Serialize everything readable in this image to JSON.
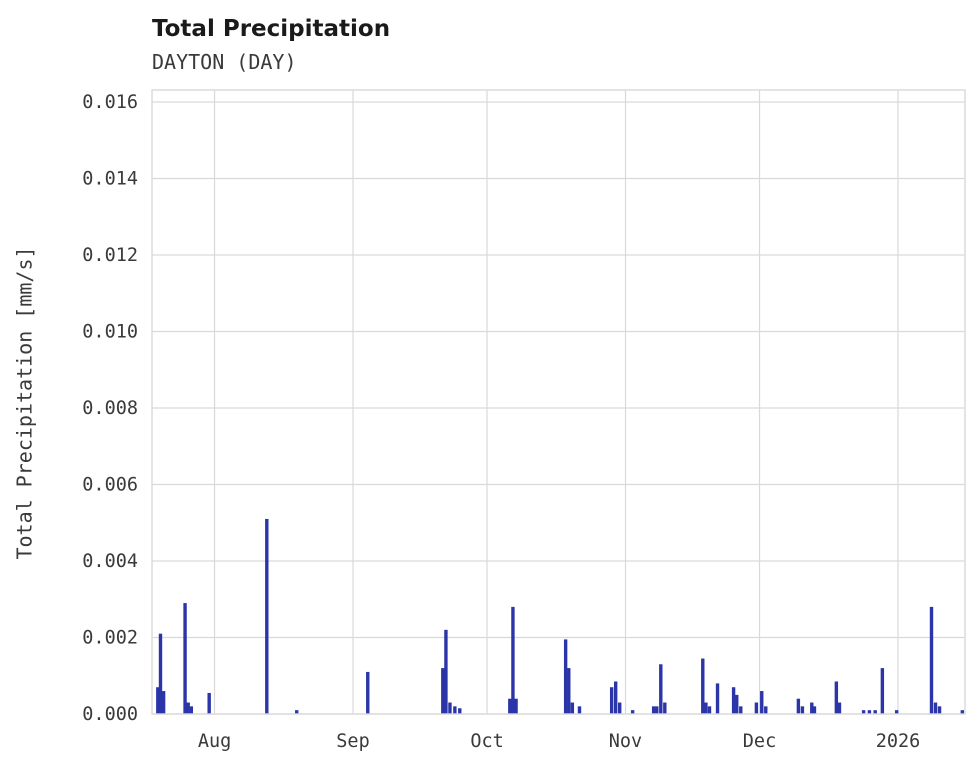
{
  "page": {
    "background": "#ffffff"
  },
  "chart_data": {
    "type": "bar",
    "title": "Total Precipitation",
    "subtitle": "DAYTON (DAY)",
    "ylabel": "Total Precipitation [mm/s]",
    "xlabel": "",
    "ylim": [
      0,
      0.016
    ],
    "yticks": [
      0.0,
      0.002,
      0.004,
      0.006,
      0.008,
      0.01,
      0.012,
      0.014,
      0.016
    ],
    "grid": true,
    "legend": "none",
    "colors": {
      "bar": "#2b35a8",
      "grid": "#d9d9d9",
      "text": "#3a3a3a",
      "title": "#1a1a1a"
    },
    "x_axis": {
      "unit": "day-offset",
      "span_days": 182,
      "ticks": [
        {
          "label": "Aug",
          "day": 14
        },
        {
          "label": "Sep",
          "day": 45
        },
        {
          "label": "Oct",
          "day": 75
        },
        {
          "label": "Nov",
          "day": 106
        },
        {
          "label": "Dec",
          "day": 136
        },
        {
          "label": "2026",
          "day": 167
        }
      ]
    },
    "series": [
      {
        "name": "Total Precipitation",
        "color": "#2b35a8",
        "points": [
          [
            1.3,
            0.0007
          ],
          [
            1.9,
            0.0021
          ],
          [
            2.6,
            0.0006
          ],
          [
            7.4,
            0.0029
          ],
          [
            8.1,
            0.0003
          ],
          [
            8.8,
            0.0002
          ],
          [
            12.8,
            0.00055
          ],
          [
            25.7,
            0.0051
          ],
          [
            32.4,
            0.0001
          ],
          [
            48.3,
            0.0011
          ],
          [
            65.1,
            0.0012
          ],
          [
            65.8,
            0.0022
          ],
          [
            66.7,
            0.0003
          ],
          [
            67.8,
            0.0002
          ],
          [
            68.9,
            0.00015
          ],
          [
            80.1,
            0.0004
          ],
          [
            80.8,
            0.0028
          ],
          [
            81.5,
            0.0004
          ],
          [
            92.6,
            0.00195
          ],
          [
            93.3,
            0.0012
          ],
          [
            94.1,
            0.0003
          ],
          [
            95.7,
            0.0002
          ],
          [
            102.9,
            0.0007
          ],
          [
            103.8,
            0.00085
          ],
          [
            104.7,
            0.0003
          ],
          [
            107.6,
            0.0001
          ],
          [
            112.3,
            0.0002
          ],
          [
            113.0,
            0.0002
          ],
          [
            113.9,
            0.0013
          ],
          [
            114.8,
            0.0003
          ],
          [
            123.3,
            0.00145
          ],
          [
            124.0,
            0.0003
          ],
          [
            124.8,
            0.0002
          ],
          [
            126.6,
            0.0008
          ],
          [
            130.2,
            0.0007
          ],
          [
            130.9,
            0.0005
          ],
          [
            131.8,
            0.0002
          ],
          [
            135.3,
            0.0003
          ],
          [
            136.5,
            0.0006
          ],
          [
            137.4,
            0.0002
          ],
          [
            144.7,
            0.0004
          ],
          [
            145.6,
            0.0002
          ],
          [
            147.7,
            0.0003
          ],
          [
            148.3,
            0.0002
          ],
          [
            153.2,
            0.00085
          ],
          [
            153.9,
            0.0003
          ],
          [
            159.3,
            0.0001
          ],
          [
            160.6,
            0.0001
          ],
          [
            161.9,
            0.0001
          ],
          [
            163.5,
            0.0012
          ],
          [
            166.7,
            0.0001
          ],
          [
            174.5,
            0.0028
          ],
          [
            175.4,
            0.0003
          ],
          [
            176.3,
            0.0002
          ],
          [
            181.4,
            0.0001
          ]
        ]
      }
    ]
  }
}
